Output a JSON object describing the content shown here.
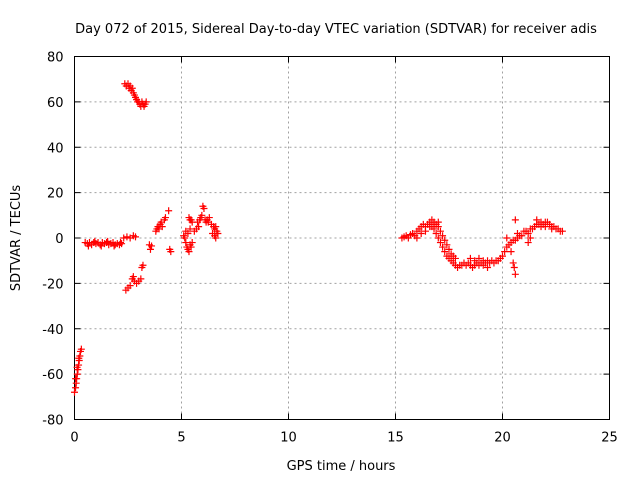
{
  "chart_data": {
    "type": "scatter",
    "title": "Day 072 of 2015, Sidereal Day-to-day VTEC variation (SDTVAR) for receiver adis",
    "xlabel": "GPS time / hours",
    "ylabel": "SDTVAR / TECUs",
    "xlim": [
      0,
      25
    ],
    "ylim": [
      -80,
      80
    ],
    "x_ticks": [
      0,
      5,
      10,
      15,
      20,
      25
    ],
    "x_tick_labels": [
      "0",
      "5",
      "10",
      "15",
      "20",
      "25"
    ],
    "y_ticks": [
      -80,
      -60,
      -40,
      -20,
      0,
      20,
      40,
      60,
      80
    ],
    "y_tick_labels": [
      "-80",
      "-60",
      "-40",
      "-20",
      "0",
      "20",
      "40",
      "60",
      "80"
    ],
    "grid": true,
    "legend": "none",
    "marker": "plus",
    "series": [
      {
        "name": "SDTVAR",
        "color": "#ff0000",
        "points": [
          [
            0.0,
            -68
          ],
          [
            0.05,
            -66
          ],
          [
            0.08,
            -64
          ],
          [
            0.1,
            -62
          ],
          [
            0.13,
            -60
          ],
          [
            0.16,
            -58
          ],
          [
            0.19,
            -56
          ],
          [
            0.22,
            -54
          ],
          [
            0.25,
            -52
          ],
          [
            0.28,
            -50
          ],
          [
            0.32,
            -49
          ],
          [
            0.05,
            -62
          ],
          [
            0.12,
            -57
          ],
          [
            0.2,
            -53
          ],
          [
            0.5,
            -2
          ],
          [
            0.6,
            -2.5
          ],
          [
            0.7,
            -2
          ],
          [
            0.8,
            -3
          ],
          [
            0.9,
            -2
          ],
          [
            1.0,
            -2.5
          ],
          [
            1.1,
            -2
          ],
          [
            1.2,
            -3
          ],
          [
            1.3,
            -2
          ],
          [
            1.4,
            -2.5
          ],
          [
            1.5,
            -2
          ],
          [
            1.6,
            -3
          ],
          [
            1.7,
            -2.5
          ],
          [
            1.8,
            -2
          ],
          [
            1.9,
            -3
          ],
          [
            2.0,
            -2.5
          ],
          [
            2.1,
            -3
          ],
          [
            2.2,
            -2.5
          ],
          [
            0.65,
            -3.5
          ],
          [
            0.95,
            -1.5
          ],
          [
            1.25,
            -3.5
          ],
          [
            1.55,
            -1.5
          ],
          [
            1.85,
            -3.5
          ],
          [
            2.15,
            -2
          ],
          [
            2.3,
            0
          ],
          [
            2.45,
            0.5
          ],
          [
            2.6,
            0
          ],
          [
            2.75,
            1
          ],
          [
            2.85,
            0.5
          ],
          [
            2.35,
            68
          ],
          [
            2.42,
            67
          ],
          [
            2.5,
            68
          ],
          [
            2.55,
            66
          ],
          [
            2.6,
            67
          ],
          [
            2.65,
            65
          ],
          [
            2.7,
            66
          ],
          [
            2.75,
            64
          ],
          [
            2.8,
            63
          ],
          [
            2.85,
            62
          ],
          [
            2.9,
            61
          ],
          [
            2.95,
            60
          ],
          [
            3.0,
            60
          ],
          [
            3.05,
            59
          ],
          [
            3.1,
            58
          ],
          [
            3.15,
            60
          ],
          [
            3.2,
            59
          ],
          [
            3.25,
            58
          ],
          [
            3.3,
            59
          ],
          [
            3.35,
            60
          ],
          [
            2.4,
            -23
          ],
          [
            2.5,
            -22
          ],
          [
            2.6,
            -21
          ],
          [
            2.7,
            -18
          ],
          [
            2.75,
            -17
          ],
          [
            2.8,
            -19
          ],
          [
            2.9,
            -20
          ],
          [
            3.0,
            -19
          ],
          [
            3.1,
            -18
          ],
          [
            3.15,
            -13
          ],
          [
            3.2,
            -12
          ],
          [
            3.5,
            -3
          ],
          [
            3.55,
            -5
          ],
          [
            3.6,
            -3.5
          ],
          [
            3.8,
            3
          ],
          [
            3.85,
            4
          ],
          [
            3.9,
            5
          ],
          [
            3.95,
            4
          ],
          [
            4.0,
            6
          ],
          [
            4.05,
            7
          ],
          [
            4.1,
            5
          ],
          [
            4.2,
            8
          ],
          [
            4.25,
            9
          ],
          [
            4.4,
            12
          ],
          [
            4.45,
            -5
          ],
          [
            4.5,
            -6
          ],
          [
            5.1,
            1
          ],
          [
            5.15,
            0
          ],
          [
            5.2,
            -2
          ],
          [
            5.25,
            -4
          ],
          [
            5.3,
            -5
          ],
          [
            5.35,
            -6
          ],
          [
            5.4,
            -3
          ],
          [
            5.45,
            -4
          ],
          [
            5.5,
            -2
          ],
          [
            5.2,
            3
          ],
          [
            5.3,
            2
          ],
          [
            5.4,
            4
          ],
          [
            5.35,
            9
          ],
          [
            5.4,
            8
          ],
          [
            5.45,
            8
          ],
          [
            5.5,
            7
          ],
          [
            5.6,
            3
          ],
          [
            5.7,
            4
          ],
          [
            5.75,
            7
          ],
          [
            5.8,
            5
          ],
          [
            5.85,
            8
          ],
          [
            5.9,
            9
          ],
          [
            5.95,
            10
          ],
          [
            6.0,
            14
          ],
          [
            6.05,
            13
          ],
          [
            6.1,
            8
          ],
          [
            6.15,
            7
          ],
          [
            6.2,
            8
          ],
          [
            6.25,
            7
          ],
          [
            6.3,
            9
          ],
          [
            6.4,
            6
          ],
          [
            6.5,
            5
          ],
          [
            6.55,
            4
          ],
          [
            6.6,
            5
          ],
          [
            6.65,
            3
          ],
          [
            6.7,
            2
          ],
          [
            6.55,
            1
          ],
          [
            6.6,
            0
          ],
          [
            6.45,
            2
          ],
          [
            15.3,
            0
          ],
          [
            15.4,
            0.5
          ],
          [
            15.5,
            1
          ],
          [
            15.6,
            0
          ],
          [
            15.7,
            1.5
          ],
          [
            15.8,
            2
          ],
          [
            15.9,
            1
          ],
          [
            16.0,
            3
          ],
          [
            16.1,
            4
          ],
          [
            16.2,
            5
          ],
          [
            16.3,
            6
          ],
          [
            16.4,
            5
          ],
          [
            16.5,
            6
          ],
          [
            16.6,
            7
          ],
          [
            16.7,
            8
          ],
          [
            16.8,
            7
          ],
          [
            16.9,
            6
          ],
          [
            17.0,
            5
          ],
          [
            16.0,
            0
          ],
          [
            16.2,
            2
          ],
          [
            16.4,
            3
          ],
          [
            16.6,
            5
          ],
          [
            16.8,
            6
          ],
          [
            17.0,
            7
          ],
          [
            16.7,
            5
          ],
          [
            16.8,
            4
          ],
          [
            16.9,
            2
          ],
          [
            17.0,
            0
          ],
          [
            17.1,
            -2
          ],
          [
            17.2,
            -4
          ],
          [
            17.3,
            -6
          ],
          [
            17.4,
            -8
          ],
          [
            17.5,
            -9
          ],
          [
            17.6,
            -10
          ],
          [
            17.7,
            -11
          ],
          [
            17.8,
            -12
          ],
          [
            17.9,
            -13
          ],
          [
            18.0,
            -12
          ],
          [
            18.1,
            -12
          ],
          [
            17.1,
            3
          ],
          [
            17.2,
            1
          ],
          [
            17.3,
            -1
          ],
          [
            17.4,
            -3
          ],
          [
            17.5,
            -5
          ],
          [
            17.6,
            -7
          ],
          [
            17.7,
            -8
          ],
          [
            17.8,
            -9
          ],
          [
            18.2,
            -11
          ],
          [
            18.3,
            -12
          ],
          [
            18.4,
            -11
          ],
          [
            18.5,
            -12
          ],
          [
            18.6,
            -13
          ],
          [
            18.7,
            -12
          ],
          [
            18.8,
            -11
          ],
          [
            18.9,
            -12
          ],
          [
            19.0,
            -11
          ],
          [
            19.1,
            -10
          ],
          [
            19.2,
            -11
          ],
          [
            19.3,
            -10
          ],
          [
            19.4,
            -11
          ],
          [
            19.5,
            -10
          ],
          [
            19.6,
            -11
          ],
          [
            19.7,
            -10
          ],
          [
            19.8,
            -10
          ],
          [
            19.9,
            -9
          ],
          [
            18.5,
            -9
          ],
          [
            18.7,
            -10
          ],
          [
            18.9,
            -9
          ],
          [
            19.1,
            -12
          ],
          [
            19.3,
            -13
          ],
          [
            20.0,
            -8
          ],
          [
            20.1,
            -6
          ],
          [
            20.2,
            -4
          ],
          [
            20.3,
            -3
          ],
          [
            20.4,
            -2
          ],
          [
            20.5,
            -1
          ],
          [
            20.6,
            -1
          ],
          [
            20.7,
            0
          ],
          [
            20.8,
            1
          ],
          [
            20.2,
            0
          ],
          [
            20.4,
            -6
          ],
          [
            20.5,
            -11
          ],
          [
            20.55,
            -13
          ],
          [
            20.6,
            -16
          ],
          [
            20.6,
            8
          ],
          [
            20.7,
            2
          ],
          [
            20.9,
            1
          ],
          [
            21.0,
            3
          ],
          [
            21.1,
            3
          ],
          [
            21.2,
            2
          ],
          [
            21.3,
            4
          ],
          [
            21.4,
            4
          ],
          [
            21.5,
            5
          ],
          [
            21.6,
            6
          ],
          [
            21.7,
            6
          ],
          [
            21.8,
            5
          ],
          [
            21.9,
            6
          ],
          [
            22.0,
            7
          ],
          [
            22.1,
            7
          ],
          [
            22.2,
            6
          ],
          [
            22.3,
            5
          ],
          [
            22.4,
            5
          ],
          [
            22.5,
            4
          ],
          [
            22.6,
            4
          ],
          [
            22.7,
            3
          ],
          [
            22.8,
            3
          ],
          [
            21.2,
            -2
          ],
          [
            21.3,
            0
          ],
          [
            21.6,
            8
          ],
          [
            21.8,
            7
          ],
          [
            22.0,
            5
          ],
          [
            22.3,
            4
          ]
        ]
      }
    ]
  }
}
